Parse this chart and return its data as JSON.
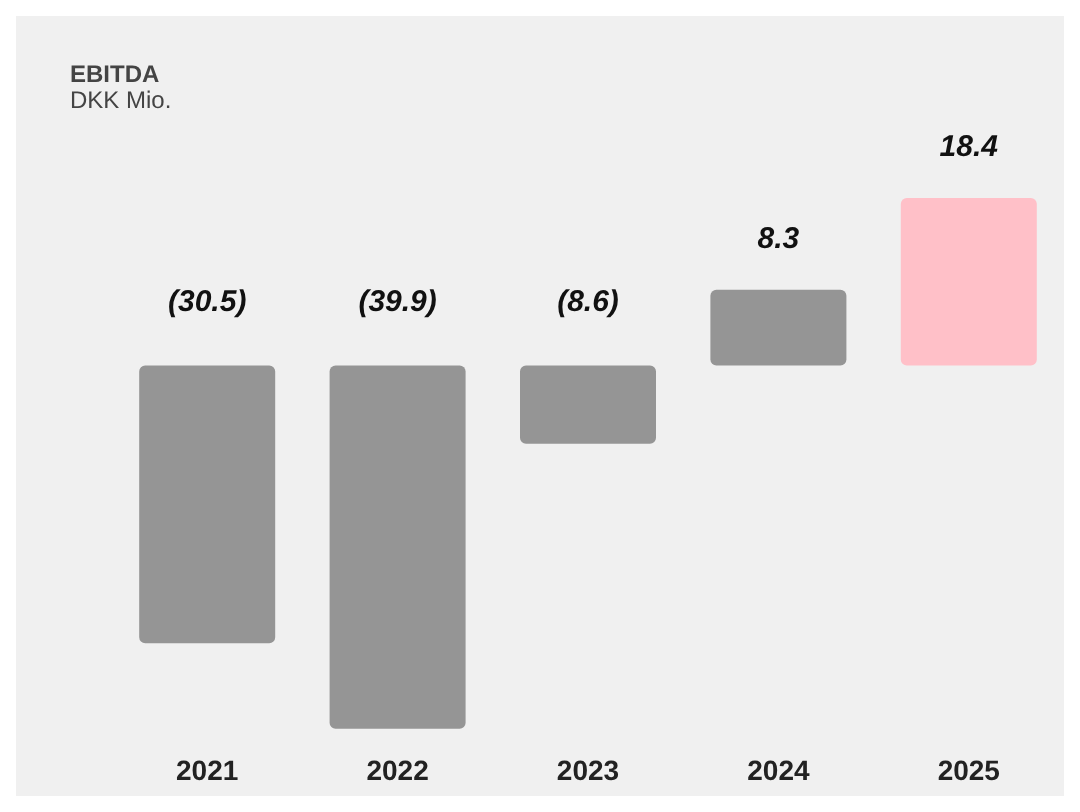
{
  "chart_data": {
    "type": "bar",
    "title": "EBITDA",
    "subtitle": "DKK Mio.",
    "categories": [
      "2021",
      "2022",
      "2023",
      "2024",
      "2025"
    ],
    "values": [
      -30.5,
      -39.9,
      -8.6,
      8.3,
      18.4
    ],
    "colors": [
      "#959595",
      "#959595",
      "#959595",
      "#959595",
      "#ffc0c8"
    ],
    "value_labels": [
      "(30.5)",
      "(39.9)",
      "(8.6)",
      "8.3",
      "18.4"
    ]
  }
}
